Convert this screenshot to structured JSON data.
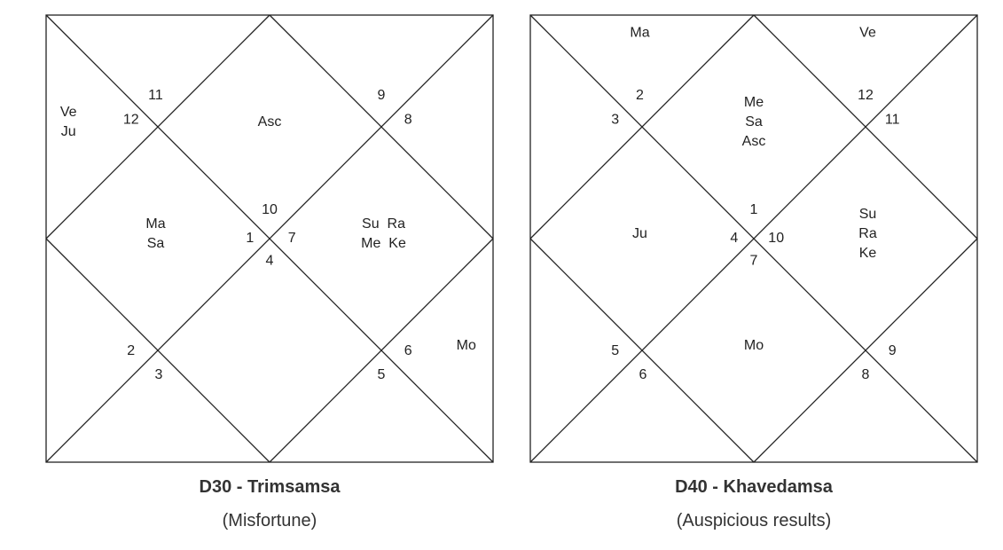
{
  "charts": [
    {
      "title": "D30 - Trimsamsa",
      "subtitle": "(Misfortune)",
      "house_signs": [
        "10",
        "11",
        "12",
        "1",
        "2",
        "3",
        "4",
        "5",
        "6",
        "7",
        "8",
        "9"
      ],
      "house_planets": [
        [],
        [],
        [
          "Ve",
          "Ju"
        ],
        [
          "Ma",
          "Sa"
        ],
        [],
        [],
        [],
        [],
        [
          "Mo"
        ],
        [
          "Su  Ra",
          "Me  Ke"
        ],
        [],
        []
      ],
      "asc_label": "Asc"
    },
    {
      "title": "D40 - Khavedamsa",
      "subtitle": "(Auspicious results)",
      "house_signs": [
        "1",
        "2",
        "3",
        "4",
        "5",
        "6",
        "7",
        "8",
        "9",
        "10",
        "11",
        "12"
      ],
      "house_planets": [
        [
          "Me",
          "Sa"
        ],
        [
          "Ma"
        ],
        [],
        [
          "Ju"
        ],
        [],
        [],
        [
          "Mo"
        ],
        [],
        [],
        [
          "Su",
          "Ra",
          "Ke"
        ],
        [],
        [
          "Ve"
        ]
      ],
      "asc_label": "Asc"
    }
  ]
}
